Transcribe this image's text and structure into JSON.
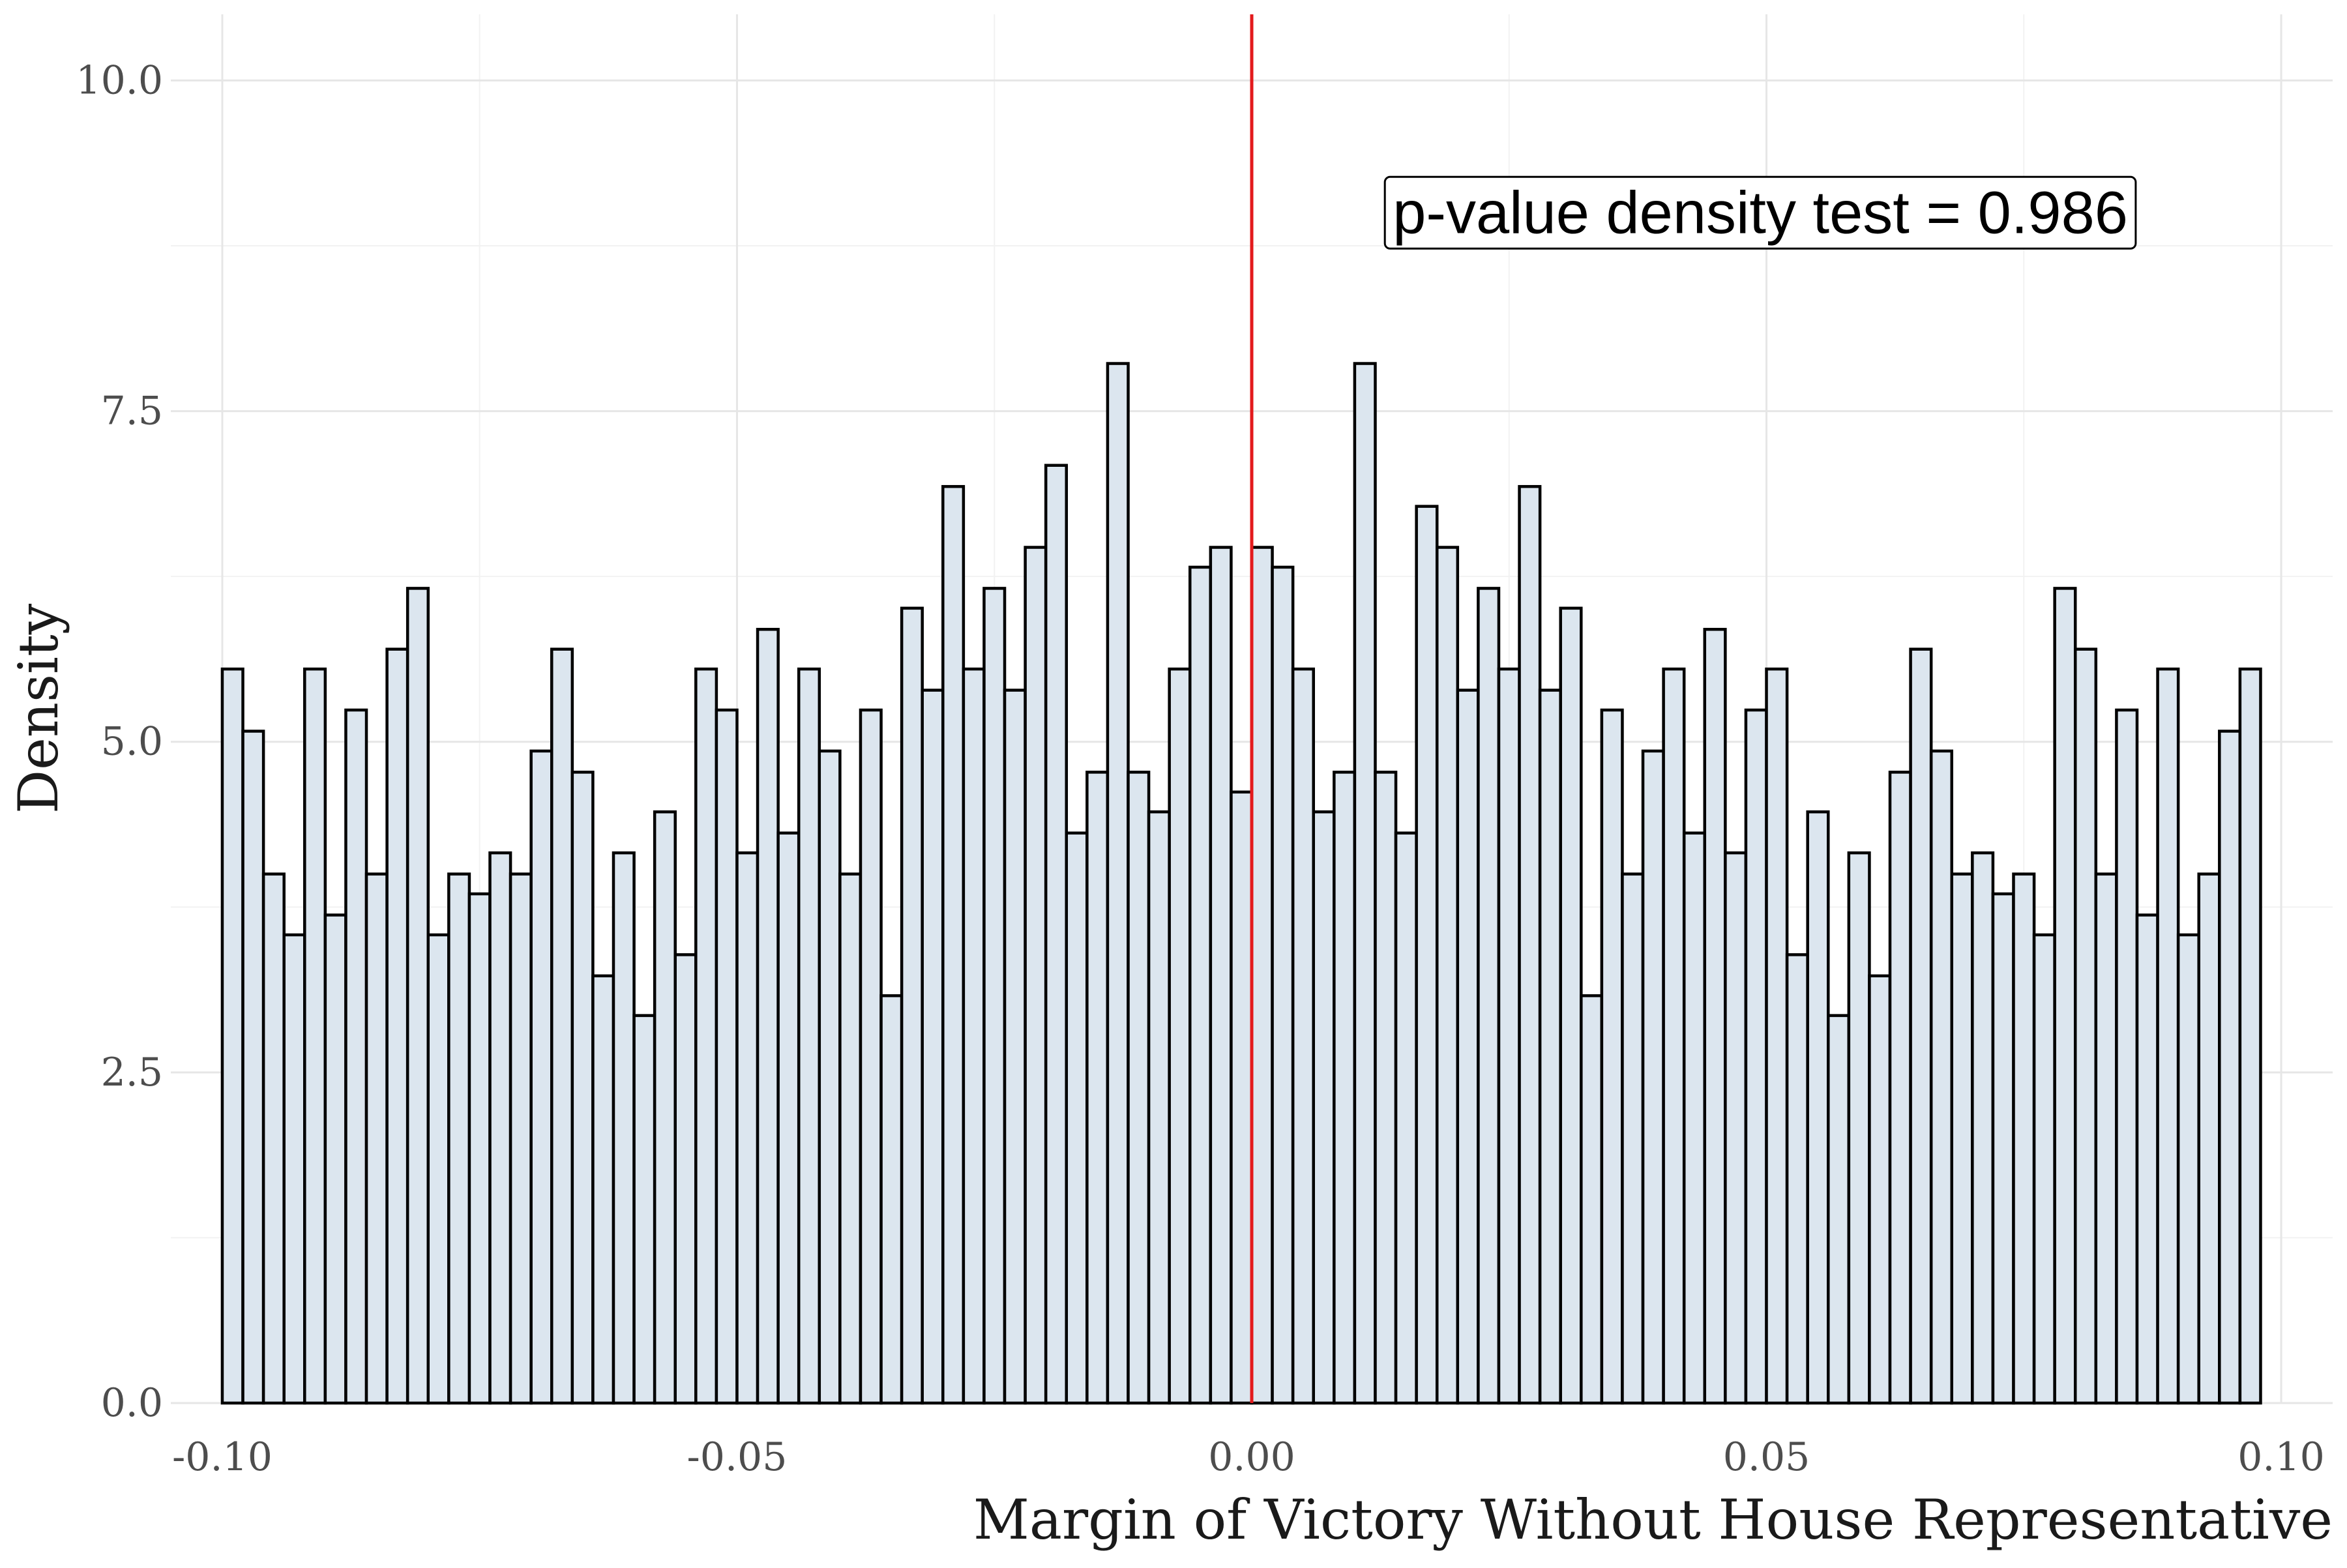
{
  "chart_data": {
    "type": "bar",
    "xlabel": "Margin of Victory Without House Representative",
    "ylabel": "Density",
    "xlim": [
      -0.105,
      0.105
    ],
    "ylim": [
      0,
      10.5
    ],
    "x_ticks": [
      -0.1,
      -0.05,
      0.0,
      0.05,
      0.1
    ],
    "x_tick_labels": [
      "-0.10",
      "-0.05",
      "0.00",
      "0.05",
      "0.10"
    ],
    "y_ticks": [
      0,
      2.5,
      5,
      7.5,
      10
    ],
    "y_tick_labels": [
      "0.0",
      "2.5",
      "5.0",
      "7.5",
      "10.0"
    ],
    "bin_start": -0.1,
    "bin_width": 0.002,
    "values": [
      5.55,
      5.08,
      4.0,
      3.54,
      5.55,
      3.69,
      5.24,
      4.0,
      5.7,
      6.16,
      3.54,
      4.0,
      3.85,
      4.16,
      4.0,
      4.93,
      5.7,
      4.77,
      3.23,
      4.16,
      2.93,
      4.47,
      3.39,
      5.55,
      5.24,
      4.16,
      5.85,
      4.31,
      5.55,
      4.93,
      4.0,
      5.24,
      3.08,
      6.01,
      5.39,
      6.93,
      5.55,
      6.16,
      5.39,
      6.47,
      7.09,
      4.31,
      4.77,
      7.86,
      4.77,
      4.47,
      5.55,
      6.32,
      6.47,
      4.62,
      6.47,
      6.32,
      5.55,
      4.47,
      4.77,
      7.86,
      4.77,
      4.31,
      6.78,
      6.47,
      5.39,
      6.16,
      5.55,
      6.93,
      5.39,
      6.01,
      3.08,
      5.24,
      4.0,
      4.93,
      5.55,
      4.31,
      5.85,
      4.16,
      5.24,
      5.55,
      3.39,
      4.47,
      2.93,
      4.16,
      3.23,
      4.77,
      5.7,
      4.93,
      4.0,
      4.16,
      3.85,
      4.0,
      3.54,
      6.16,
      5.7,
      4.0,
      5.24,
      3.69,
      5.55,
      3.54,
      4.0,
      5.08,
      5.55
    ],
    "vline_x": 0.0,
    "annotation": "p-value density test =  0.986",
    "annotation_pos": {
      "x": 0.0494,
      "y": 9.0
    },
    "grid": true,
    "colors": {
      "bar_fill": "#dce6ef",
      "bar_stroke": "#000000",
      "vline": "#e31a1c",
      "grid_major": "#e6e6e6",
      "grid_minor": "#f2f2f2",
      "tick_text": "#4d4d4d",
      "title_text": "#1a1a1a"
    }
  }
}
